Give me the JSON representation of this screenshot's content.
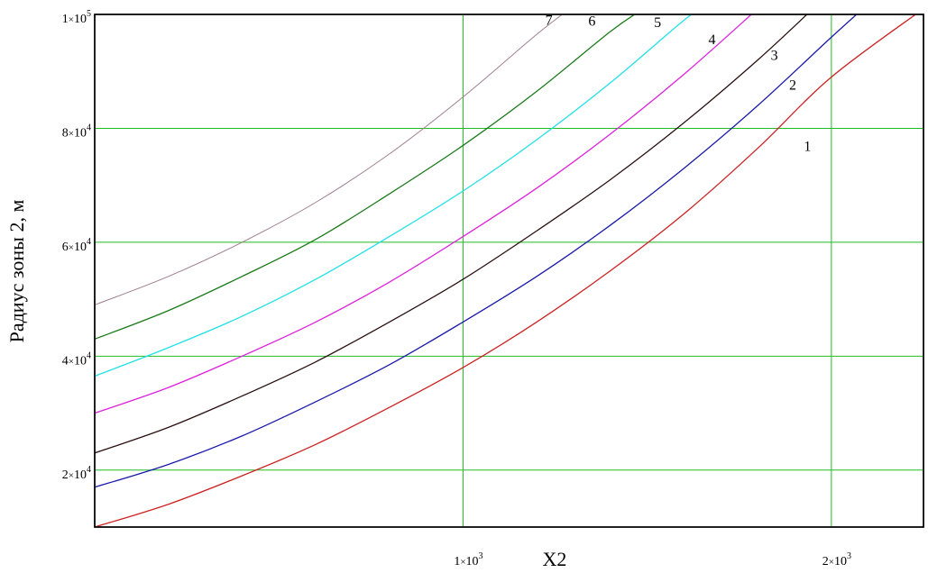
{
  "chart_data": {
    "type": "line",
    "title": "",
    "xlabel": "X2",
    "ylabel": "Радиус зоны 2, м",
    "xlim": [
      0,
      2250
    ],
    "ylim": [
      10000,
      100000
    ],
    "grid": true,
    "grid_color": "#22bb22",
    "x_ticks": [
      {
        "value": 1000,
        "mantissa": "1",
        "times": "×",
        "base": "10",
        "exp": "3"
      },
      {
        "value": 2000,
        "mantissa": "2",
        "times": "×",
        "base": "10",
        "exp": "3"
      }
    ],
    "y_ticks": [
      {
        "value": 20000,
        "mantissa": "2",
        "times": "×",
        "base": "10",
        "exp": "4"
      },
      {
        "value": 40000,
        "mantissa": "4",
        "times": "×",
        "base": "10",
        "exp": "4"
      },
      {
        "value": 60000,
        "mantissa": "6",
        "times": "×",
        "base": "10",
        "exp": "4"
      },
      {
        "value": 80000,
        "mantissa": "8",
        "times": "×",
        "base": "10",
        "exp": "4"
      },
      {
        "value": 100000,
        "mantissa": "1",
        "times": "×",
        "base": "10",
        "exp": "5"
      }
    ],
    "series": [
      {
        "label": "1",
        "color": "#cc2222",
        "width": 1.3,
        "label_at": [
          1935,
          76000
        ],
        "x": [
          0,
          200,
          400,
          600,
          800,
          1000,
          1200,
          1400,
          1600,
          1800,
          2000,
          2250
        ],
        "y": [
          10000,
          14000,
          19000,
          24500,
          31000,
          38000,
          46000,
          55000,
          65000,
          76500,
          89000,
          101000
        ]
      },
      {
        "label": "2",
        "color": "#1a1aaa",
        "width": 1.3,
        "label_at": [
          1895,
          86800
        ],
        "x": [
          0,
          200,
          400,
          600,
          800,
          1000,
          1200,
          1400,
          1600,
          1800,
          2000,
          2120
        ],
        "y": [
          17000,
          21000,
          26000,
          32000,
          38500,
          46000,
          54000,
          63000,
          73000,
          84000,
          96000,
          103000
        ]
      },
      {
        "label": "3",
        "color": "#2a1010",
        "width": 1.3,
        "label_at": [
          1845,
          92000
        ],
        "x": [
          0,
          200,
          400,
          600,
          800,
          1000,
          1200,
          1400,
          1600,
          1800,
          1950
        ],
        "y": [
          23000,
          27500,
          33000,
          39000,
          46000,
          53500,
          62000,
          71000,
          81000,
          92000,
          101000
        ]
      },
      {
        "label": "4",
        "color": "#dd22dd",
        "width": 1.3,
        "label_at": [
          1676,
          94800
        ],
        "x": [
          0,
          200,
          400,
          600,
          800,
          1000,
          1200,
          1400,
          1600,
          1800
        ],
        "y": [
          30000,
          34500,
          40000,
          46000,
          53000,
          61000,
          69500,
          79000,
          89500,
          101000
        ]
      },
      {
        "label": "5",
        "color": "#22e0e8",
        "width": 1.3,
        "label_at": [
          1528,
          97800
        ],
        "x": [
          0,
          200,
          400,
          600,
          800,
          1000,
          1200,
          1400,
          1600,
          1650
        ],
        "y": [
          36500,
          41500,
          47000,
          53500,
          61000,
          69000,
          78000,
          88000,
          99000,
          101000
        ]
      },
      {
        "label": "6",
        "color": "#1a7a1a",
        "width": 1.3,
        "label_at": [
          1350,
          98000
        ],
        "x": [
          0,
          200,
          400,
          600,
          800,
          1000,
          1200,
          1400,
          1490
        ],
        "y": [
          43000,
          48000,
          54000,
          60500,
          68500,
          77000,
          86500,
          97000,
          101000
        ]
      },
      {
        "label": "7",
        "color": "#a08090",
        "width": 1.0,
        "label_at": [
          1233,
          98200
        ],
        "x": [
          0,
          200,
          400,
          600,
          800,
          1000,
          1200,
          1290
        ],
        "y": [
          49000,
          54000,
          60000,
          67000,
          75500,
          85500,
          96500,
          101000
        ]
      }
    ]
  }
}
